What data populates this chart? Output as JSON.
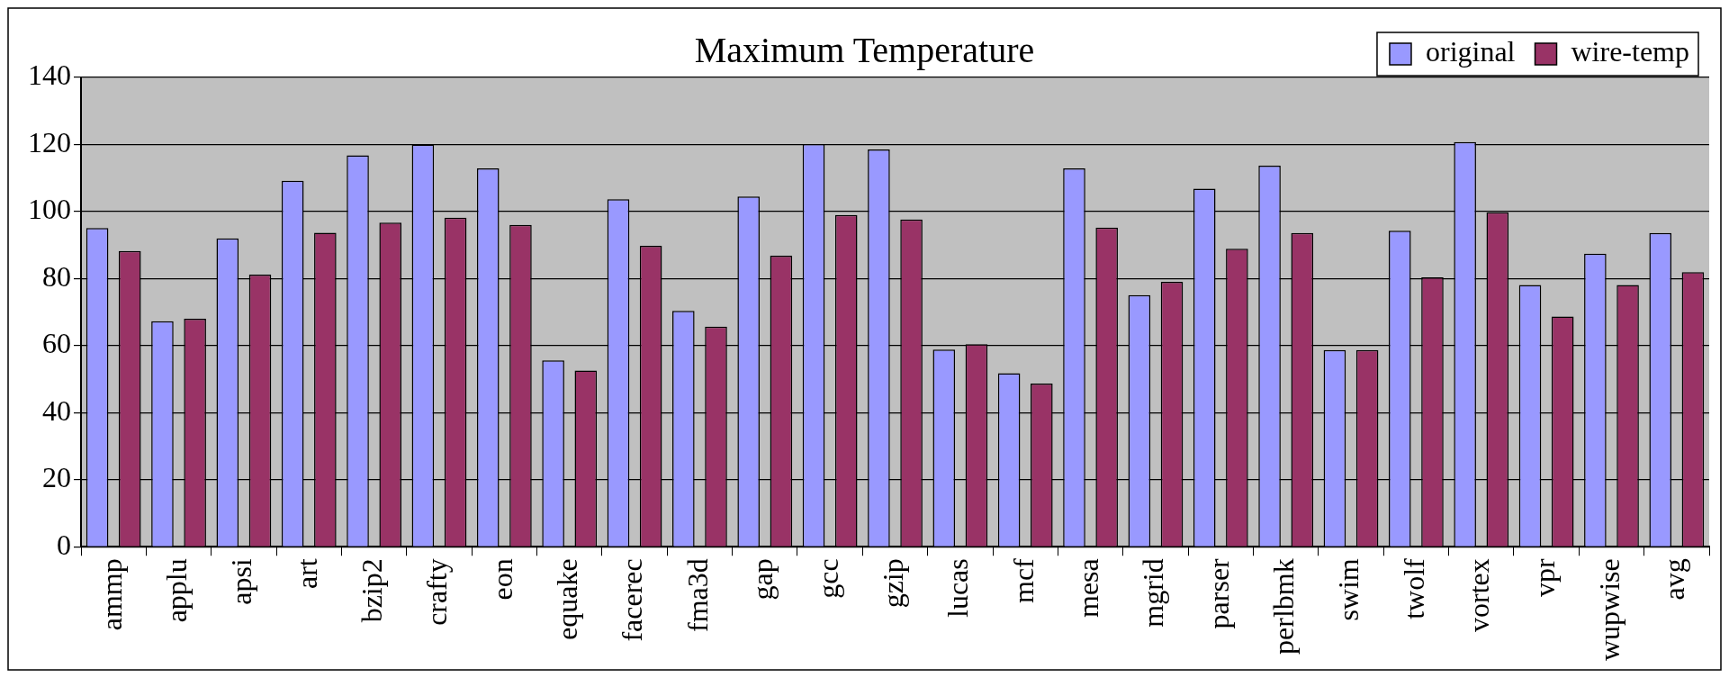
{
  "chart_data": {
    "type": "bar",
    "title": "Maximum Temperature",
    "categories": [
      "ammp",
      "applu",
      "apsi",
      "art",
      "bzip2",
      "crafty",
      "eon",
      "equake",
      "facerec",
      "fma3d",
      "gap",
      "gcc",
      "gzip",
      "lucas",
      "mcf",
      "mesa",
      "mgrid",
      "parser",
      "perlbmk",
      "swim",
      "twolf",
      "vortex",
      "vpr",
      "wupwise",
      "avg"
    ],
    "series": [
      {
        "name": "original",
        "color": "#9999ff",
        "values": [
          95.1,
          67.3,
          92.0,
          109.2,
          116.8,
          120.0,
          112.9,
          55.6,
          103.7,
          70.4,
          104.5,
          120.1,
          118.5,
          58.8,
          51.8,
          112.9,
          75.1,
          106.8,
          113.7,
          58.7,
          94.3,
          120.7,
          78.1,
          87.4,
          93.6
        ]
      },
      {
        "name": "wire-temp",
        "color": "#993366",
        "values": [
          88.2,
          68.0,
          81.2,
          93.7,
          96.7,
          98.2,
          96.0,
          52.6,
          89.8,
          65.7,
          86.8,
          99.0,
          97.6,
          60.4,
          48.7,
          95.2,
          79.0,
          88.9,
          93.6,
          58.7,
          80.4,
          99.8,
          68.7,
          78.1,
          81.9
        ]
      }
    ],
    "ylim": [
      0,
      140
    ],
    "yticks": [
      0,
      20,
      40,
      60,
      80,
      100,
      120,
      140
    ],
    "grid": "y",
    "legend": "top right"
  }
}
